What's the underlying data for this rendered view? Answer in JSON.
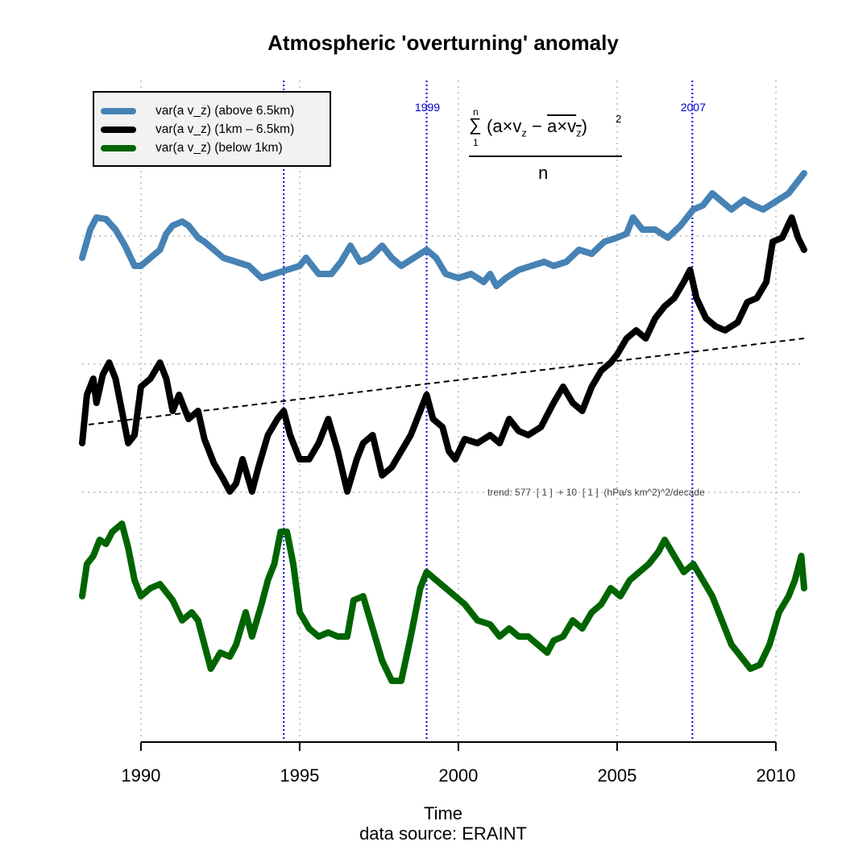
{
  "chart_data": {
    "type": "line",
    "title": "Atmospheric 'overturning' anomaly",
    "xlabel": "Time",
    "caption": "data source: ERAINT",
    "ylabel": "",
    "xlim": [
      1988.15,
      2010.89
    ],
    "ylim": [
      0,
      82
    ],
    "xticks": [
      1990,
      1995,
      2000,
      2005,
      2010
    ],
    "xtick_labels": [
      "1990",
      "1995",
      "2000",
      "2005",
      "2010"
    ],
    "y_axis_shown": false,
    "grid": true,
    "grid_y": [
      62.7,
      46.8,
      30.9
    ],
    "legend_position": "top-left",
    "legend": [
      {
        "label": "var(a v_z) (above 6.5km)",
        "color": "#4682b4"
      },
      {
        "label": "var(a v_z) (1km – 6.5km)",
        "color": "#000000"
      },
      {
        "label": "var(a v_z) (below 1km)",
        "color": "#006400"
      }
    ],
    "event_lines": [
      {
        "x": 1994.5,
        "label": ""
      },
      {
        "x": 1999.0,
        "label": "1999"
      },
      {
        "x": 2007.37,
        "label": "2007"
      }
    ],
    "event_color": "#0000cc",
    "formula": {
      "sum": "∑",
      "upper": "n",
      "lower": "1",
      "body_left": "(a×v",
      "sub_z": "z",
      "minus": " − ",
      "over": "a×v",
      "sub_z2": "z",
      "close": ")",
      "power": "2",
      "denominator": "n"
    },
    "trend": {
      "label": "trend: 577  [ 1 ]  + 10  [ 1 ]  (hPa/s km^2)^2/decade",
      "start": [
        1988.35,
        39.3
      ],
      "end": [
        2010.89,
        50.0
      ]
    },
    "series": [
      {
        "name": "var(a v_z) (above 6.5km)",
        "color": "#4682b4",
        "points": [
          [
            1988.15,
            60
          ],
          [
            1988.4,
            63.5
          ],
          [
            1988.6,
            65
          ],
          [
            1988.9,
            64.8
          ],
          [
            1989.2,
            63.5
          ],
          [
            1989.5,
            61.5
          ],
          [
            1989.8,
            59
          ],
          [
            1990.0,
            59
          ],
          [
            1990.3,
            60
          ],
          [
            1990.6,
            61
          ],
          [
            1990.8,
            63
          ],
          [
            1991.0,
            64
          ],
          [
            1991.3,
            64.5
          ],
          [
            1991.5,
            64
          ],
          [
            1991.8,
            62.5
          ],
          [
            1992.0,
            62
          ],
          [
            1992.3,
            61
          ],
          [
            1992.6,
            60
          ],
          [
            1993.0,
            59.5
          ],
          [
            1993.4,
            59
          ],
          [
            1993.8,
            57.5
          ],
          [
            1994.2,
            58
          ],
          [
            1994.6,
            58.5
          ],
          [
            1995.0,
            59
          ],
          [
            1995.2,
            60
          ],
          [
            1995.6,
            58
          ],
          [
            1996.0,
            58
          ],
          [
            1996.3,
            59.5
          ],
          [
            1996.6,
            61.5
          ],
          [
            1996.9,
            59.5
          ],
          [
            1997.2,
            60
          ],
          [
            1997.6,
            61.5
          ],
          [
            1997.9,
            60
          ],
          [
            1998.2,
            59
          ],
          [
            1998.6,
            60
          ],
          [
            1999.0,
            61
          ],
          [
            1999.3,
            60
          ],
          [
            1999.6,
            58
          ],
          [
            2000.0,
            57.5
          ],
          [
            2000.4,
            58
          ],
          [
            2000.8,
            57
          ],
          [
            2001.0,
            58
          ],
          [
            2001.2,
            56.5
          ],
          [
            2001.5,
            57.5
          ],
          [
            2001.9,
            58.5
          ],
          [
            2002.3,
            59
          ],
          [
            2002.7,
            59.5
          ],
          [
            2003.0,
            59
          ],
          [
            2003.4,
            59.5
          ],
          [
            2003.8,
            61
          ],
          [
            2004.2,
            60.5
          ],
          [
            2004.6,
            62
          ],
          [
            2005.0,
            62.5
          ],
          [
            2005.3,
            63
          ],
          [
            2005.5,
            65
          ],
          [
            2005.8,
            63.5
          ],
          [
            2006.2,
            63.5
          ],
          [
            2006.6,
            62.5
          ],
          [
            2007.0,
            64
          ],
          [
            2007.4,
            66
          ],
          [
            2007.7,
            66.5
          ],
          [
            2008.0,
            68
          ],
          [
            2008.3,
            67
          ],
          [
            2008.6,
            66
          ],
          [
            2009.0,
            67.2
          ],
          [
            2009.3,
            66.5
          ],
          [
            2009.6,
            66
          ],
          [
            2010.0,
            67
          ],
          [
            2010.4,
            68
          ],
          [
            2010.89,
            70.5
          ]
        ]
      },
      {
        "name": "var(a v_z) (1km – 6.5km)",
        "color": "#000000",
        "points": [
          [
            1988.15,
            37
          ],
          [
            1988.3,
            43
          ],
          [
            1988.5,
            45
          ],
          [
            1988.6,
            42
          ],
          [
            1988.8,
            45.5
          ],
          [
            1989.0,
            47
          ],
          [
            1989.2,
            45
          ],
          [
            1989.4,
            41
          ],
          [
            1989.6,
            37
          ],
          [
            1989.8,
            38
          ],
          [
            1990.0,
            44
          ],
          [
            1990.3,
            45
          ],
          [
            1990.6,
            47
          ],
          [
            1990.8,
            45
          ],
          [
            1991.0,
            41
          ],
          [
            1991.2,
            43
          ],
          [
            1991.5,
            40
          ],
          [
            1991.8,
            41
          ],
          [
            1992.0,
            37.5
          ],
          [
            1992.3,
            34.5
          ],
          [
            1992.6,
            32.5
          ],
          [
            1992.8,
            31
          ],
          [
            1993.0,
            32
          ],
          [
            1993.2,
            35
          ],
          [
            1993.5,
            31
          ],
          [
            1993.7,
            34
          ],
          [
            1994.0,
            38
          ],
          [
            1994.3,
            40
          ],
          [
            1994.5,
            41
          ],
          [
            1994.7,
            38
          ],
          [
            1995.0,
            35
          ],
          [
            1995.3,
            35
          ],
          [
            1995.6,
            37
          ],
          [
            1995.9,
            40
          ],
          [
            1996.2,
            36
          ],
          [
            1996.5,
            31
          ],
          [
            1996.8,
            35
          ],
          [
            1997.0,
            37
          ],
          [
            1997.3,
            38
          ],
          [
            1997.6,
            33
          ],
          [
            1997.9,
            34
          ],
          [
            1998.2,
            36
          ],
          [
            1998.5,
            38
          ],
          [
            1998.8,
            41
          ],
          [
            1999.0,
            43
          ],
          [
            1999.2,
            40
          ],
          [
            1999.5,
            39
          ],
          [
            1999.7,
            36
          ],
          [
            1999.9,
            35
          ],
          [
            2000.2,
            37.5
          ],
          [
            2000.6,
            37
          ],
          [
            2001.0,
            38
          ],
          [
            2001.3,
            37
          ],
          [
            2001.6,
            40
          ],
          [
            2001.9,
            38.5
          ],
          [
            2002.2,
            38
          ],
          [
            2002.6,
            39
          ],
          [
            2003.0,
            42
          ],
          [
            2003.3,
            44
          ],
          [
            2003.6,
            42
          ],
          [
            2003.9,
            41
          ],
          [
            2004.2,
            44
          ],
          [
            2004.5,
            46
          ],
          [
            2004.8,
            47
          ],
          [
            2005.0,
            48
          ],
          [
            2005.3,
            50
          ],
          [
            2005.6,
            51
          ],
          [
            2005.9,
            50
          ],
          [
            2006.2,
            52.5
          ],
          [
            2006.5,
            54
          ],
          [
            2006.8,
            55
          ],
          [
            2007.1,
            57
          ],
          [
            2007.3,
            58.5
          ],
          [
            2007.5,
            55
          ],
          [
            2007.8,
            52.5
          ],
          [
            2008.1,
            51.5
          ],
          [
            2008.4,
            51
          ],
          [
            2008.8,
            52
          ],
          [
            2009.1,
            54.5
          ],
          [
            2009.4,
            55
          ],
          [
            2009.7,
            57
          ],
          [
            2009.9,
            62
          ],
          [
            2010.2,
            62.5
          ],
          [
            2010.5,
            65
          ],
          [
            2010.7,
            62.5
          ],
          [
            2010.89,
            61
          ]
        ]
      },
      {
        "name": "var(a v_z) (below 1km)",
        "color": "#006400",
        "points": [
          [
            1988.15,
            18
          ],
          [
            1988.3,
            22
          ],
          [
            1988.5,
            23
          ],
          [
            1988.7,
            25
          ],
          [
            1988.9,
            24.5
          ],
          [
            1989.1,
            26
          ],
          [
            1989.4,
            27
          ],
          [
            1989.6,
            24
          ],
          [
            1989.8,
            20
          ],
          [
            1990.0,
            18
          ],
          [
            1990.3,
            19
          ],
          [
            1990.6,
            19.5
          ],
          [
            1990.8,
            18.5
          ],
          [
            1991.0,
            17.5
          ],
          [
            1991.3,
            15
          ],
          [
            1991.6,
            16
          ],
          [
            1991.8,
            15
          ],
          [
            1992.0,
            12
          ],
          [
            1992.2,
            9
          ],
          [
            1992.5,
            11
          ],
          [
            1992.8,
            10.5
          ],
          [
            1993.0,
            12
          ],
          [
            1993.3,
            16
          ],
          [
            1993.5,
            13
          ],
          [
            1993.8,
            17
          ],
          [
            1994.0,
            20
          ],
          [
            1994.2,
            22
          ],
          [
            1994.4,
            26
          ],
          [
            1994.6,
            26
          ],
          [
            1994.8,
            22
          ],
          [
            1995.0,
            16
          ],
          [
            1995.3,
            14
          ],
          [
            1995.6,
            13
          ],
          [
            1995.9,
            13.5
          ],
          [
            1996.2,
            13
          ],
          [
            1996.5,
            13
          ],
          [
            1996.7,
            17.5
          ],
          [
            1997.0,
            18
          ],
          [
            1997.3,
            14
          ],
          [
            1997.6,
            10
          ],
          [
            1997.9,
            7.5
          ],
          [
            1998.2,
            7.5
          ],
          [
            1998.5,
            13
          ],
          [
            1998.8,
            19
          ],
          [
            1999.0,
            21
          ],
          [
            1999.3,
            20
          ],
          [
            1999.6,
            19
          ],
          [
            1999.9,
            18
          ],
          [
            2000.2,
            17
          ],
          [
            2000.6,
            15
          ],
          [
            2001.0,
            14.5
          ],
          [
            2001.3,
            13
          ],
          [
            2001.6,
            14
          ],
          [
            2001.9,
            13
          ],
          [
            2002.2,
            13
          ],
          [
            2002.5,
            12
          ],
          [
            2002.8,
            11
          ],
          [
            2003.0,
            12.5
          ],
          [
            2003.3,
            13
          ],
          [
            2003.6,
            15
          ],
          [
            2003.9,
            14
          ],
          [
            2004.2,
            16
          ],
          [
            2004.5,
            17
          ],
          [
            2004.8,
            19
          ],
          [
            2005.1,
            18
          ],
          [
            2005.4,
            20
          ],
          [
            2005.7,
            21
          ],
          [
            2006.0,
            22
          ],
          [
            2006.3,
            23.5
          ],
          [
            2006.5,
            25
          ],
          [
            2006.8,
            23
          ],
          [
            2007.1,
            21
          ],
          [
            2007.4,
            22
          ],
          [
            2007.7,
            20
          ],
          [
            2008.0,
            18
          ],
          [
            2008.3,
            15
          ],
          [
            2008.6,
            12
          ],
          [
            2008.9,
            10.5
          ],
          [
            2009.2,
            9
          ],
          [
            2009.5,
            9.5
          ],
          [
            2009.8,
            12
          ],
          [
            2010.1,
            16
          ],
          [
            2010.4,
            18
          ],
          [
            2010.6,
            20
          ],
          [
            2010.8,
            23
          ],
          [
            2010.89,
            19
          ]
        ]
      }
    ]
  }
}
